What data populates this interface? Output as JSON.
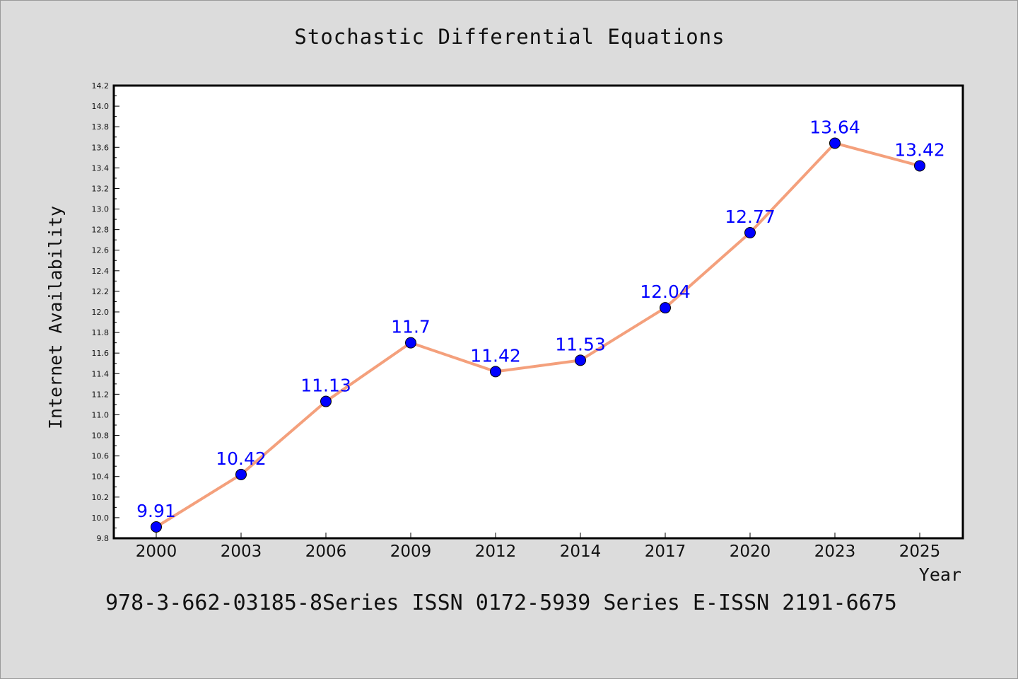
{
  "chart_data": {
    "type": "line",
    "title": "Stochastic Differential Equations",
    "xlabel": "Year",
    "ylabel": "Internet Availability",
    "categories": [
      "2000",
      "2003",
      "2006",
      "2009",
      "2012",
      "2014",
      "2017",
      "2020",
      "2023",
      "2025"
    ],
    "series": [
      {
        "values": [
          9.91,
          10.42,
          11.13,
          11.7,
          11.42,
          11.53,
          12.04,
          12.77,
          13.64,
          13.42
        ],
        "labels": [
          "9.91",
          "10.42",
          "11.13",
          "11.7",
          "11.42",
          "11.53",
          "12.04",
          "12.77",
          "13.64",
          "13.42"
        ]
      }
    ],
    "ylim": [
      9.8,
      14.2
    ],
    "yticks": [
      "9.8",
      "10.0",
      "10.2",
      "10.4",
      "10.6",
      "10.8",
      "11.0",
      "11.2",
      "11.4",
      "11.6",
      "11.8",
      "12.0",
      "12.2",
      "12.4",
      "12.6",
      "12.8",
      "13.0",
      "13.2",
      "13.4",
      "13.6",
      "13.8",
      "14.0",
      "14.2"
    ],
    "grid": false,
    "line_color": "#f4a07c",
    "marker_color": "#0000ff",
    "label_color": "#0000ff"
  },
  "footer": {
    "text": "978-3-662-03185-8Series ISSN 0172-5939 Series E-ISSN 2191-6675"
  }
}
